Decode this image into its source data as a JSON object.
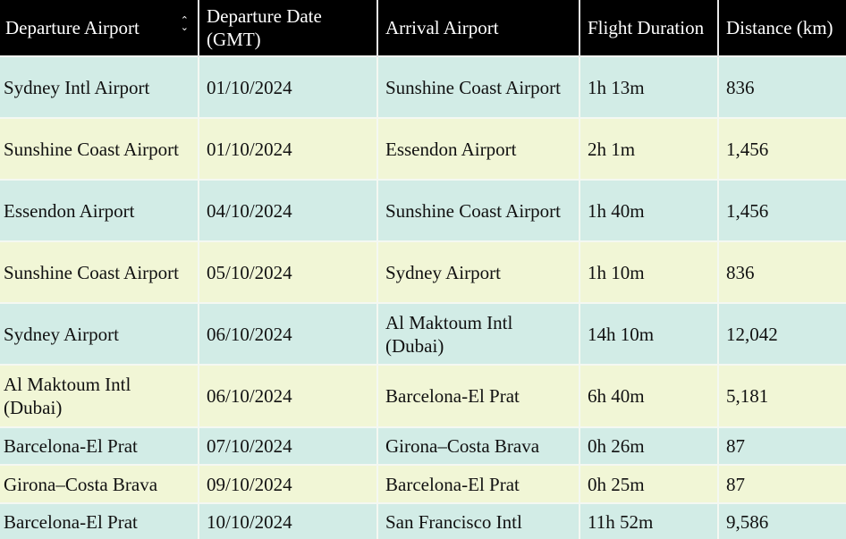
{
  "table": {
    "headers": [
      "Departure Airport",
      "Departure Date (GMT)",
      "Arrival Airport",
      "Flight Duration",
      "Distance (km)"
    ],
    "sort_icon": "sort-up-down-icon",
    "row_colors": [
      "#d2ece6",
      "#f1f6d6"
    ],
    "rows": [
      [
        "Sydney Intl Airport",
        "01/10/2024",
        "Sunshine Coast Airport",
        "1h 13m",
        "836"
      ],
      [
        "Sunshine Coast Airport",
        "01/10/2024",
        "Essendon Airport",
        "2h 1m",
        "1,456"
      ],
      [
        "Essendon Airport",
        "04/10/2024",
        "Sunshine Coast Airport",
        "1h 40m",
        "1,456"
      ],
      [
        "Sunshine Coast Airport",
        "05/10/2024",
        "Sydney Airport",
        "1h 10m",
        "836"
      ],
      [
        "Sydney Airport",
        "06/10/2024",
        "Al Maktoum Intl (Dubai)",
        "14h 10m",
        "12,042"
      ],
      [
        "Al Maktoum Intl (Dubai)",
        "06/10/2024",
        "Barcelona-El Prat",
        "6h 40m",
        "5,181"
      ],
      [
        "Barcelona-El Prat",
        "07/10/2024",
        "Girona–Costa Brava",
        "0h 26m",
        "87"
      ],
      [
        "Girona–Costa Brava",
        "09/10/2024",
        "Barcelona-El Prat",
        "0h 25m",
        "87"
      ],
      [
        "Barcelona-El Prat",
        "10/10/2024",
        "San Francisco Intl",
        "11h 52m",
        "9,586"
      ]
    ]
  }
}
